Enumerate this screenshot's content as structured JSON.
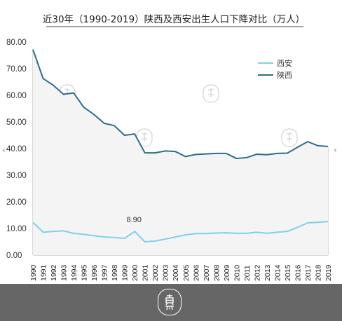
{
  "chart_data": {
    "type": "line",
    "title": "近30年（1990-2019）陕西及西安出生人口下降对比（万人）",
    "x": [
      "1990",
      "1991",
      "1992",
      "1993",
      "1994",
      "1995",
      "1996",
      "1997",
      "1998",
      "1999",
      "2000",
      "2001",
      "2002",
      "2003",
      "2004",
      "2005",
      "2006",
      "2007",
      "2008",
      "2009",
      "2010",
      "2011",
      "2012",
      "2013",
      "2014",
      "2015",
      "2016",
      "2017",
      "2018",
      "2019"
    ],
    "series": [
      {
        "name": "西安",
        "color": "#7fd0ec",
        "values": [
          12.3,
          8.6,
          8.9,
          9.1,
          8.2,
          7.8,
          7.3,
          6.8,
          6.6,
          6.3,
          8.9,
          5.0,
          5.3,
          6.0,
          6.8,
          7.6,
          8.1,
          8.1,
          8.3,
          8.4,
          8.2,
          8.2,
          8.6,
          8.2,
          8.6,
          8.9,
          10.4,
          12.1,
          12.3,
          12.6
        ]
      },
      {
        "name": "陕西",
        "color": "#2c6e8a",
        "values": [
          77.2,
          66.3,
          63.8,
          60.4,
          60.9,
          55.5,
          52.8,
          49.5,
          48.6,
          45.0,
          45.5,
          38.4,
          38.4,
          39.1,
          38.9,
          37.0,
          37.8,
          38.0,
          38.2,
          38.2,
          36.3,
          36.6,
          37.9,
          37.7,
          38.2,
          38.3,
          40.5,
          42.6,
          41.1,
          40.8
        ]
      }
    ],
    "annotations": [
      {
        "series": "西安",
        "x": "2000",
        "label": "8.90"
      }
    ],
    "y_ticks": [
      "0.00",
      "10.00",
      "20.00",
      "30.00",
      "40.00",
      "50.00",
      "60.00",
      "70.00",
      "80.00"
    ],
    "ylim": [
      0,
      80
    ],
    "xlabel": "",
    "ylabel": "",
    "grid": "vertical",
    "legend_position": "top-right"
  },
  "colors": {
    "background": "#ffffff",
    "grid": "#b5b5b5",
    "footer": "#666666"
  },
  "icons": {
    "footer_seal": "seal-icon",
    "watermark": "watermark-seal-icon",
    "left_nav": "chevron-left-icon",
    "right_nav": "chevron-right-icon"
  },
  "nav": {
    "left": "‹",
    "right": "‹"
  }
}
